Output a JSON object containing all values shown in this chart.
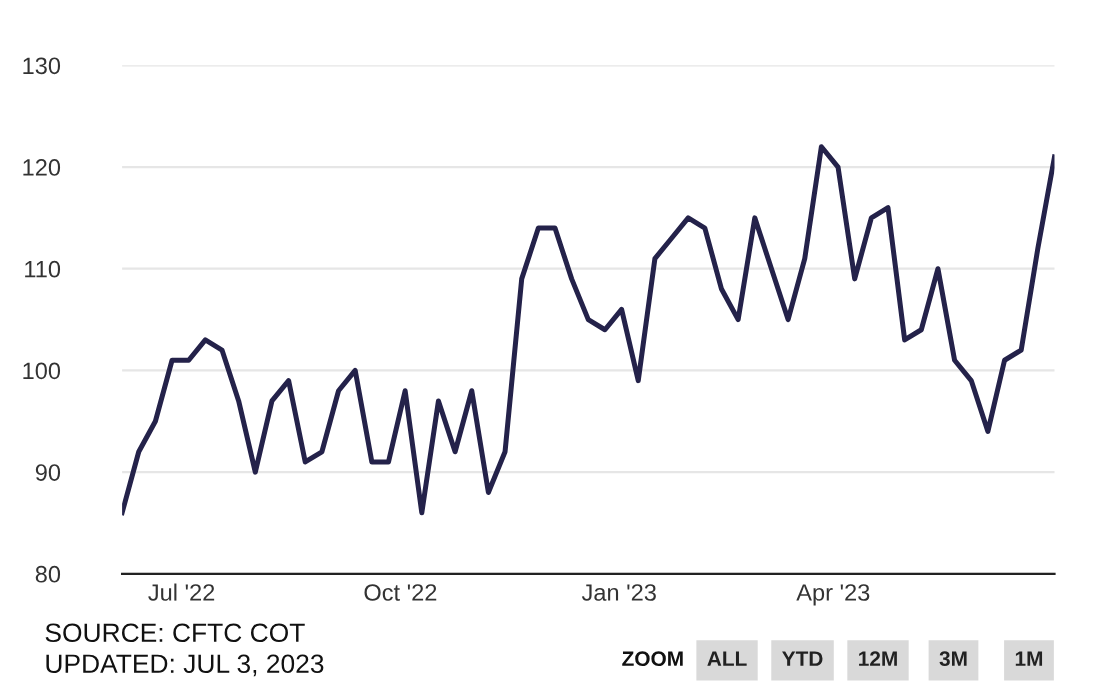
{
  "chart_data": {
    "type": "line",
    "x": [
      "2022-06-06",
      "2022-06-13",
      "2022-06-20",
      "2022-06-27",
      "2022-07-04",
      "2022-07-11",
      "2022-07-18",
      "2022-07-25",
      "2022-08-01",
      "2022-08-08",
      "2022-08-15",
      "2022-08-22",
      "2022-08-29",
      "2022-09-05",
      "2022-09-12",
      "2022-09-19",
      "2022-09-26",
      "2022-10-03",
      "2022-10-10",
      "2022-10-17",
      "2022-10-24",
      "2022-10-31",
      "2022-11-07",
      "2022-11-14",
      "2022-11-21",
      "2022-11-28",
      "2022-12-05",
      "2022-12-12",
      "2022-12-19",
      "2022-12-26",
      "2023-01-02",
      "2023-01-09",
      "2023-01-16",
      "2023-01-23",
      "2023-01-30",
      "2023-02-06",
      "2023-02-13",
      "2023-02-20",
      "2023-02-27",
      "2023-03-06",
      "2023-03-13",
      "2023-03-20",
      "2023-03-27",
      "2023-04-03",
      "2023-04-10",
      "2023-04-17",
      "2023-04-24",
      "2023-05-01",
      "2023-05-08",
      "2023-05-15",
      "2023-05-22",
      "2023-05-29",
      "2023-06-05",
      "2023-06-12",
      "2023-06-19",
      "2023-06-26",
      "2023-07-03"
    ],
    "series": [
      {
        "color": "#24224a",
        "values": [
          86,
          92,
          95,
          101,
          101,
          103,
          102,
          97,
          90,
          97,
          99,
          91,
          92,
          98,
          100,
          91,
          91,
          98,
          86,
          97,
          92,
          98,
          88,
          92,
          109,
          114,
          114,
          109,
          105,
          104,
          106,
          99,
          111,
          113,
          115,
          114,
          108,
          105,
          115,
          110,
          105,
          111,
          122,
          120,
          109,
          115,
          116,
          103,
          104,
          110,
          101,
          99,
          94,
          101,
          102,
          112,
          121
        ]
      }
    ],
    "xlim": [
      "2022-06-06",
      "2023-07-03"
    ],
    "xticks": [
      {
        "value": "2022-07-01",
        "label": "Jul '22"
      },
      {
        "value": "2022-10-01",
        "label": "Oct '22"
      },
      {
        "value": "2023-01-01",
        "label": "Jan '23"
      },
      {
        "value": "2023-04-01",
        "label": "Apr '23"
      }
    ],
    "ylim": [
      80,
      130
    ],
    "yticks": [
      80,
      90,
      100,
      110,
      120,
      130
    ],
    "grid": "y",
    "marker": "none",
    "line_style": "solid",
    "annotations": [
      "SOURCE: CFTC COT",
      "UPDATED: JUL 3, 2023",
      "ZOOM",
      "ALL",
      "YTD",
      "12M",
      "3M",
      "1M"
    ]
  }
}
